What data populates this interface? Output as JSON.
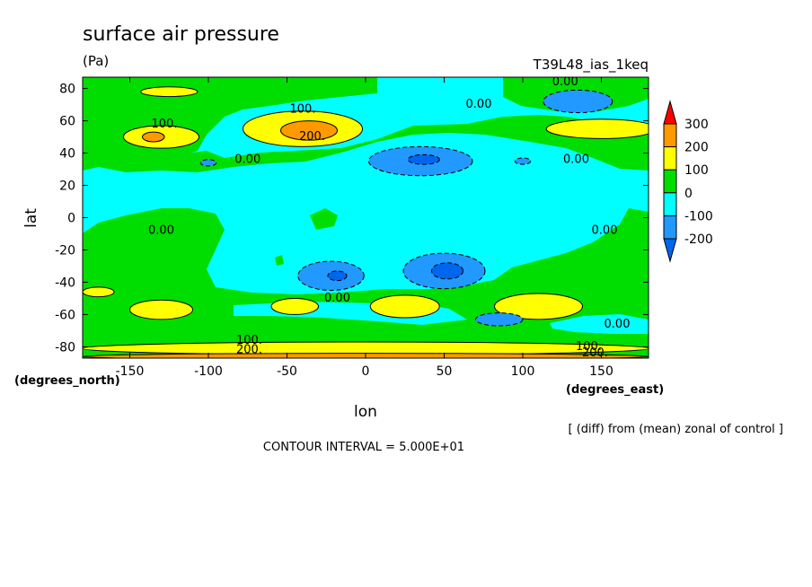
{
  "chart_data": {
    "type": "heatmap",
    "title": "surface air pressure",
    "units": "(Pa)",
    "experiment": "T39L48_ias_1keq",
    "xlabel": "lon",
    "ylabel": "lat",
    "x_unit_label": "(degrees_east)",
    "y_unit_label": "(degrees_north)",
    "xlim": [
      -180,
      180
    ],
    "ylim": [
      -87,
      87
    ],
    "x_ticks": [
      -150,
      -100,
      -50,
      0,
      50,
      100,
      150
    ],
    "y_ticks": [
      80,
      60,
      40,
      20,
      0,
      -20,
      -40,
      -60,
      -80
    ],
    "note": "[ (diff) from (mean) zonal of control ]",
    "contour_interval": "CONTOUR INTERVAL = 5.000E+01",
    "colorbar": {
      "labels": [
        "300",
        "200",
        "100",
        "0",
        "-100",
        "-200"
      ],
      "colors": [
        "#ff0000",
        "#ff9900",
        "#ffff00",
        "#00dd00",
        "#00ffff",
        "#2299ff",
        "#0066ee"
      ]
    },
    "contour_labels": [
      {
        "text": "0.00",
        "lon": 127,
        "lat": 82
      },
      {
        "text": "0.00",
        "lon": 72,
        "lat": 68
      },
      {
        "text": "100.",
        "lon": -40,
        "lat": 65
      },
      {
        "text": "100.",
        "lon": -128,
        "lat": 56
      },
      {
        "text": "200.",
        "lon": -34,
        "lat": 48
      },
      {
        "text": "0.00",
        "lon": -75,
        "lat": 34
      },
      {
        "text": "0.00",
        "lon": 134,
        "lat": 34
      },
      {
        "text": "0.00",
        "lon": -130,
        "lat": -10
      },
      {
        "text": "0.00",
        "lon": 152,
        "lat": -10
      },
      {
        "text": "0.00",
        "lon": -18,
        "lat": -52
      },
      {
        "text": "0.00",
        "lon": 160,
        "lat": -68
      },
      {
        "text": "100.",
        "lon": -74,
        "lat": -78
      },
      {
        "text": "200.",
        "lon": -74,
        "lat": -84
      },
      {
        "text": "100.",
        "lon": 142,
        "lat": -82
      },
      {
        "text": "200.",
        "lon": 146,
        "lat": -86
      }
    ],
    "features": [
      {
        "level": 100,
        "lon": -40,
        "lat": 55,
        "rlon": 38,
        "rlat": 11
      },
      {
        "level": 200,
        "lon": -36,
        "lat": 54,
        "rlon": 18,
        "rlat": 6
      },
      {
        "level": 100,
        "lon": -130,
        "lat": 50,
        "rlon": 24,
        "rlat": 7
      },
      {
        "level": 200,
        "lon": -135,
        "lat": 50,
        "rlon": 7,
        "rlat": 3
      },
      {
        "level": 100,
        "lon": -125,
        "lat": 78,
        "rlon": 18,
        "rlat": 3
      },
      {
        "level": 100,
        "lon": 150,
        "lat": 55,
        "rlon": 35,
        "rlat": 6
      },
      {
        "level": -100,
        "lon": 35,
        "lat": 35,
        "rlon": 33,
        "rlat": 9
      },
      {
        "level": -200,
        "lon": 37,
        "lat": 36,
        "rlon": 10,
        "rlat": 3
      },
      {
        "level": -100,
        "lon": 135,
        "lat": 72,
        "rlon": 22,
        "rlat": 7
      },
      {
        "level": -100,
        "lon": -100,
        "lat": 34,
        "rlon": 5,
        "rlat": 2
      },
      {
        "level": -100,
        "lon": 100,
        "lat": 35,
        "rlon": 5,
        "rlat": 2
      },
      {
        "level": -100,
        "lon": -22,
        "lat": -36,
        "rlon": 21,
        "rlat": 9
      },
      {
        "level": -200,
        "lon": -18,
        "lat": -36,
        "rlon": 6,
        "rlat": 3
      },
      {
        "level": -100,
        "lon": 50,
        "lat": -33,
        "rlon": 26,
        "rlat": 11
      },
      {
        "level": -200,
        "lon": 52,
        "lat": -33,
        "rlon": 10,
        "rlat": 5
      },
      {
        "level": 100,
        "lon": -130,
        "lat": -57,
        "rlon": 20,
        "rlat": 6
      },
      {
        "level": 100,
        "lon": -45,
        "lat": -55,
        "rlon": 15,
        "rlat": 5
      },
      {
        "level": 100,
        "lon": 25,
        "lat": -55,
        "rlon": 22,
        "rlat": 7
      },
      {
        "level": 100,
        "lon": 110,
        "lat": -55,
        "rlon": 28,
        "rlat": 8
      },
      {
        "level": 100,
        "lon": -170,
        "lat": -46,
        "rlon": 10,
        "rlat": 3
      },
      {
        "level": -100,
        "lon": 85,
        "lat": -63,
        "rlon": 15,
        "rlat": 4
      },
      {
        "level": 100,
        "lon": 0,
        "lat": -81,
        "rlon": 180,
        "rlat": 4
      },
      {
        "level": 200,
        "lon": 0,
        "lat": -86,
        "rlon": 180,
        "rlat": 2
      }
    ]
  }
}
